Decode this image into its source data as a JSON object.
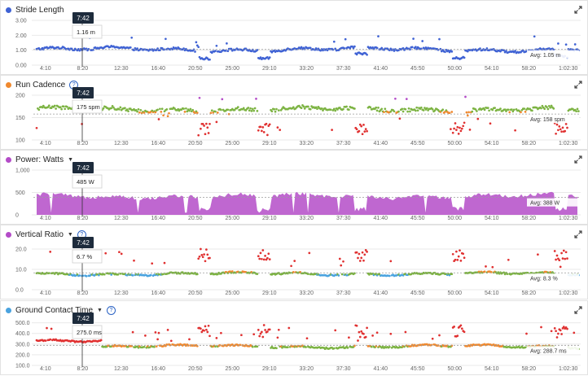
{
  "colors": {
    "blue": "#3f62d4",
    "purple": "#b44cc8",
    "red": "#e03030",
    "orange": "#f0892e",
    "green": "#7cb342",
    "lightblue": "#4aa3df",
    "grid": "#e9e9e9",
    "avgline": "#9a9a9a",
    "cursor": "#333333"
  },
  "cursor_time": "7:42",
  "chart_data": [
    {
      "type": "scatter",
      "title": "Stride Length",
      "series_color": "blue",
      "help_icon": false,
      "dropdown": false,
      "yticks": [
        "3.00",
        "2.00",
        "1.00",
        "0.00"
      ],
      "ytick_values": [
        3,
        2,
        1,
        0
      ],
      "ylim": [
        0,
        3
      ],
      "xticks": [
        "4:10",
        "8:20",
        "12:30",
        "16:40",
        "20:50",
        "25:00",
        "29:10",
        "33:20",
        "37:30",
        "41:40",
        "45:50",
        "50:00",
        "54:10",
        "58:20",
        "1:02:30"
      ],
      "avg_value": 1.05,
      "avg_label": "Avg: 1.05 m",
      "tooltip_time": "7:42",
      "tooltip_value": "1.16 m",
      "data_points": 240
    },
    {
      "type": "scatter",
      "title": "Run Cadence",
      "series_color": "orange",
      "help_icon": true,
      "dropdown": false,
      "yticks": [
        "200",
        "150",
        "100"
      ],
      "ytick_values": [
        200,
        150,
        100
      ],
      "ylim": [
        100,
        200
      ],
      "xticks": [
        "4:10",
        "8:20",
        "12:30",
        "16:40",
        "20:50",
        "25:00",
        "29:10",
        "33:20",
        "37:30",
        "41:40",
        "45:50",
        "50:00",
        "54:10",
        "58:20",
        "1:02:30"
      ],
      "avg_value": 158,
      "avg_label": "Avg: 158 spm",
      "tooltip_time": "7:42",
      "tooltip_value": "175 spm",
      "zones": [
        {
          "max": 150,
          "color": "red"
        },
        {
          "max": 163,
          "color": "orange"
        },
        {
          "max": 178,
          "color": "green"
        },
        {
          "max": 185,
          "color": "lightblue"
        },
        {
          "max": 999,
          "color": "purple"
        }
      ],
      "data_points": 240
    },
    {
      "type": "area",
      "title": "Power: Watts",
      "series_color": "purple",
      "help_icon": false,
      "dropdown": true,
      "yticks": [
        "1,000",
        "500",
        "0"
      ],
      "ytick_values": [
        1000,
        500,
        0
      ],
      "ylim": [
        0,
        1000
      ],
      "xticks": [
        "4:10",
        "8:20",
        "12:30",
        "16:40",
        "20:50",
        "25:00",
        "29:10",
        "33:20",
        "37:30",
        "41:40",
        "45:50",
        "50:00",
        "54:10",
        "58:20",
        "1:02:30"
      ],
      "avg_value": 388,
      "avg_label": "Avg: 388 W",
      "tooltip_time": "7:42",
      "tooltip_value": "485 W",
      "data_points": 300
    },
    {
      "type": "scatter",
      "title": "Vertical Ratio",
      "series_color": "purple",
      "help_icon": true,
      "dropdown": true,
      "yticks": [
        "20.0",
        "10.0",
        "0.0"
      ],
      "ytick_values": [
        20,
        10,
        0
      ],
      "ylim": [
        0,
        22
      ],
      "xticks": [
        "4:10",
        "8:20",
        "12:30",
        "16:40",
        "20:50",
        "25:00",
        "29:10",
        "33:20",
        "37:30",
        "41:40",
        "45:50",
        "50:00",
        "54:10",
        "58:20",
        "1:02:30"
      ],
      "avg_value": 8.3,
      "avg_label": "Avg: 8.3 %",
      "tooltip_time": "7:42",
      "tooltip_value": "6.7 %",
      "zones": [
        {
          "max": 6.1,
          "color": "purple"
        },
        {
          "max": 7.4,
          "color": "lightblue"
        },
        {
          "max": 8.6,
          "color": "green"
        },
        {
          "max": 10.1,
          "color": "orange"
        },
        {
          "max": 999,
          "color": "red"
        }
      ],
      "data_points": 240
    },
    {
      "type": "scatter",
      "title": "Ground Contact Time",
      "series_color": "lightblue",
      "help_icon": true,
      "dropdown": true,
      "yticks": [
        "500.0",
        "400.0",
        "300.0",
        "200.0",
        "100.0"
      ],
      "ytick_values": [
        500,
        400,
        300,
        200,
        100
      ],
      "ylim": [
        100,
        520
      ],
      "xticks": [
        "4:10",
        "8:20",
        "12:30",
        "16:40",
        "20:50",
        "25:00",
        "29:10",
        "33:20",
        "37:30",
        "41:40",
        "45:50",
        "50:00",
        "54:10",
        "58:20",
        "1:02:30"
      ],
      "avg_value": 288.7,
      "avg_label": "Avg: 288.7 ms",
      "tooltip_time": "7:42",
      "tooltip_value": "275.0 ms",
      "zones": [
        {
          "max": 218,
          "color": "lightblue"
        },
        {
          "max": 249,
          "color": "lightblue"
        },
        {
          "max": 278,
          "color": "green"
        },
        {
          "max": 305,
          "color": "orange"
        },
        {
          "max": 999,
          "color": "red"
        }
      ],
      "data_points": 240
    }
  ]
}
